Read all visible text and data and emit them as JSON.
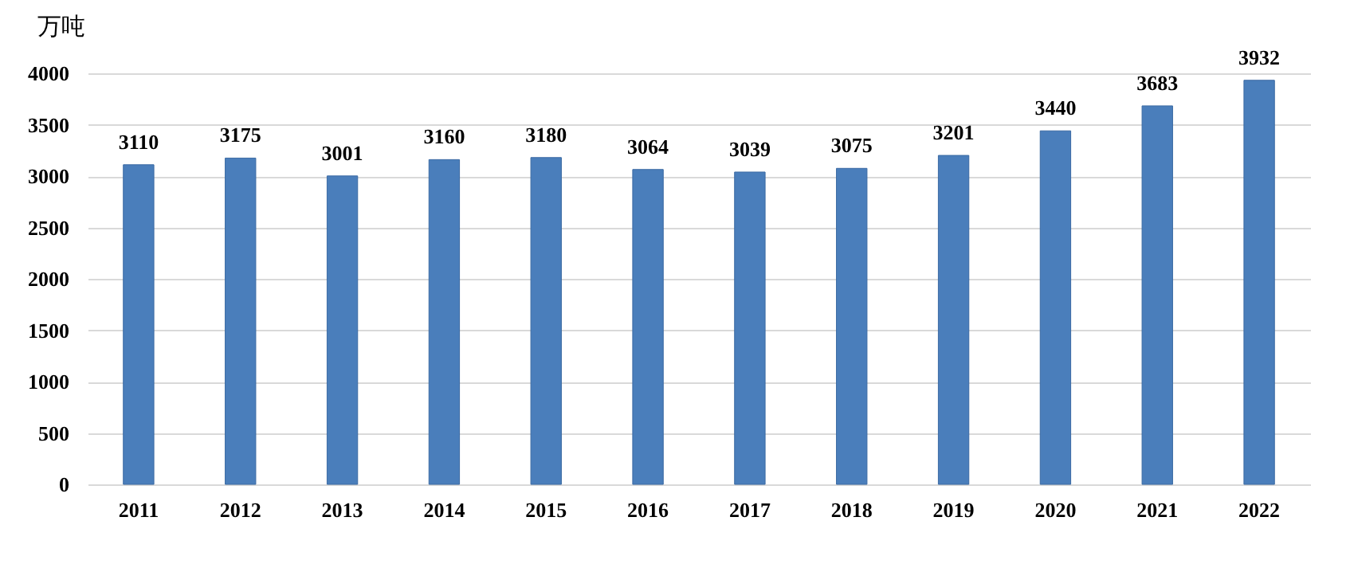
{
  "chart_data": {
    "type": "bar",
    "ylabel": "万吨",
    "categories": [
      "2011",
      "2012",
      "2013",
      "2014",
      "2015",
      "2016",
      "2017",
      "2018",
      "2019",
      "2020",
      "2021",
      "2022"
    ],
    "values": [
      3110,
      3175,
      3001,
      3160,
      3180,
      3064,
      3039,
      3075,
      3201,
      3440,
      3683,
      3932
    ],
    "color": "#4a7ebb",
    "ylim": [
      0,
      4000
    ],
    "yticks": [
      0,
      500,
      1000,
      1500,
      2000,
      2500,
      3000,
      3500,
      4000
    ],
    "grid": "y",
    "data_labels": true
  }
}
